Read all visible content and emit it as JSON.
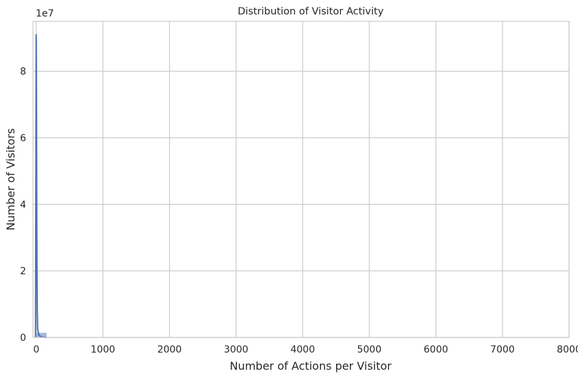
{
  "chart_data": {
    "type": "bar",
    "title": "Distribution of Visitor Activity",
    "xlabel": "Number of Actions per Visitor",
    "ylabel": "Number of Visitors",
    "y_offset_text": "1e7",
    "xlim": [
      -50,
      8000
    ],
    "ylim": [
      0,
      95000000
    ],
    "xticks": [
      0,
      1000,
      2000,
      3000,
      4000,
      5000,
      6000,
      7000,
      8000
    ],
    "xtick_labels": [
      "0",
      "1000",
      "2000",
      "3000",
      "4000",
      "5000",
      "6000",
      "7000",
      "8000"
    ],
    "yticks": [
      0,
      20000000,
      40000000,
      60000000,
      80000000
    ],
    "ytick_labels": [
      "0",
      "2",
      "4",
      "6",
      "8"
    ],
    "grid": true,
    "colors": {
      "bar": "#9fb0d8",
      "line": "#4c72b0",
      "grid": "#cccccc",
      "spine": "#cccccc"
    },
    "histogram": {
      "bins": [
        {
          "x0": 0,
          "x1": 155,
          "count": 1400000
        }
      ]
    },
    "kde": {
      "x": [
        -12,
        -2,
        0,
        3,
        6,
        10,
        14,
        20,
        40,
        80,
        150
      ],
      "y": [
        0,
        91000000,
        88000000,
        70000000,
        45000000,
        22000000,
        9000000,
        2500000,
        600000,
        150000,
        0
      ]
    }
  }
}
